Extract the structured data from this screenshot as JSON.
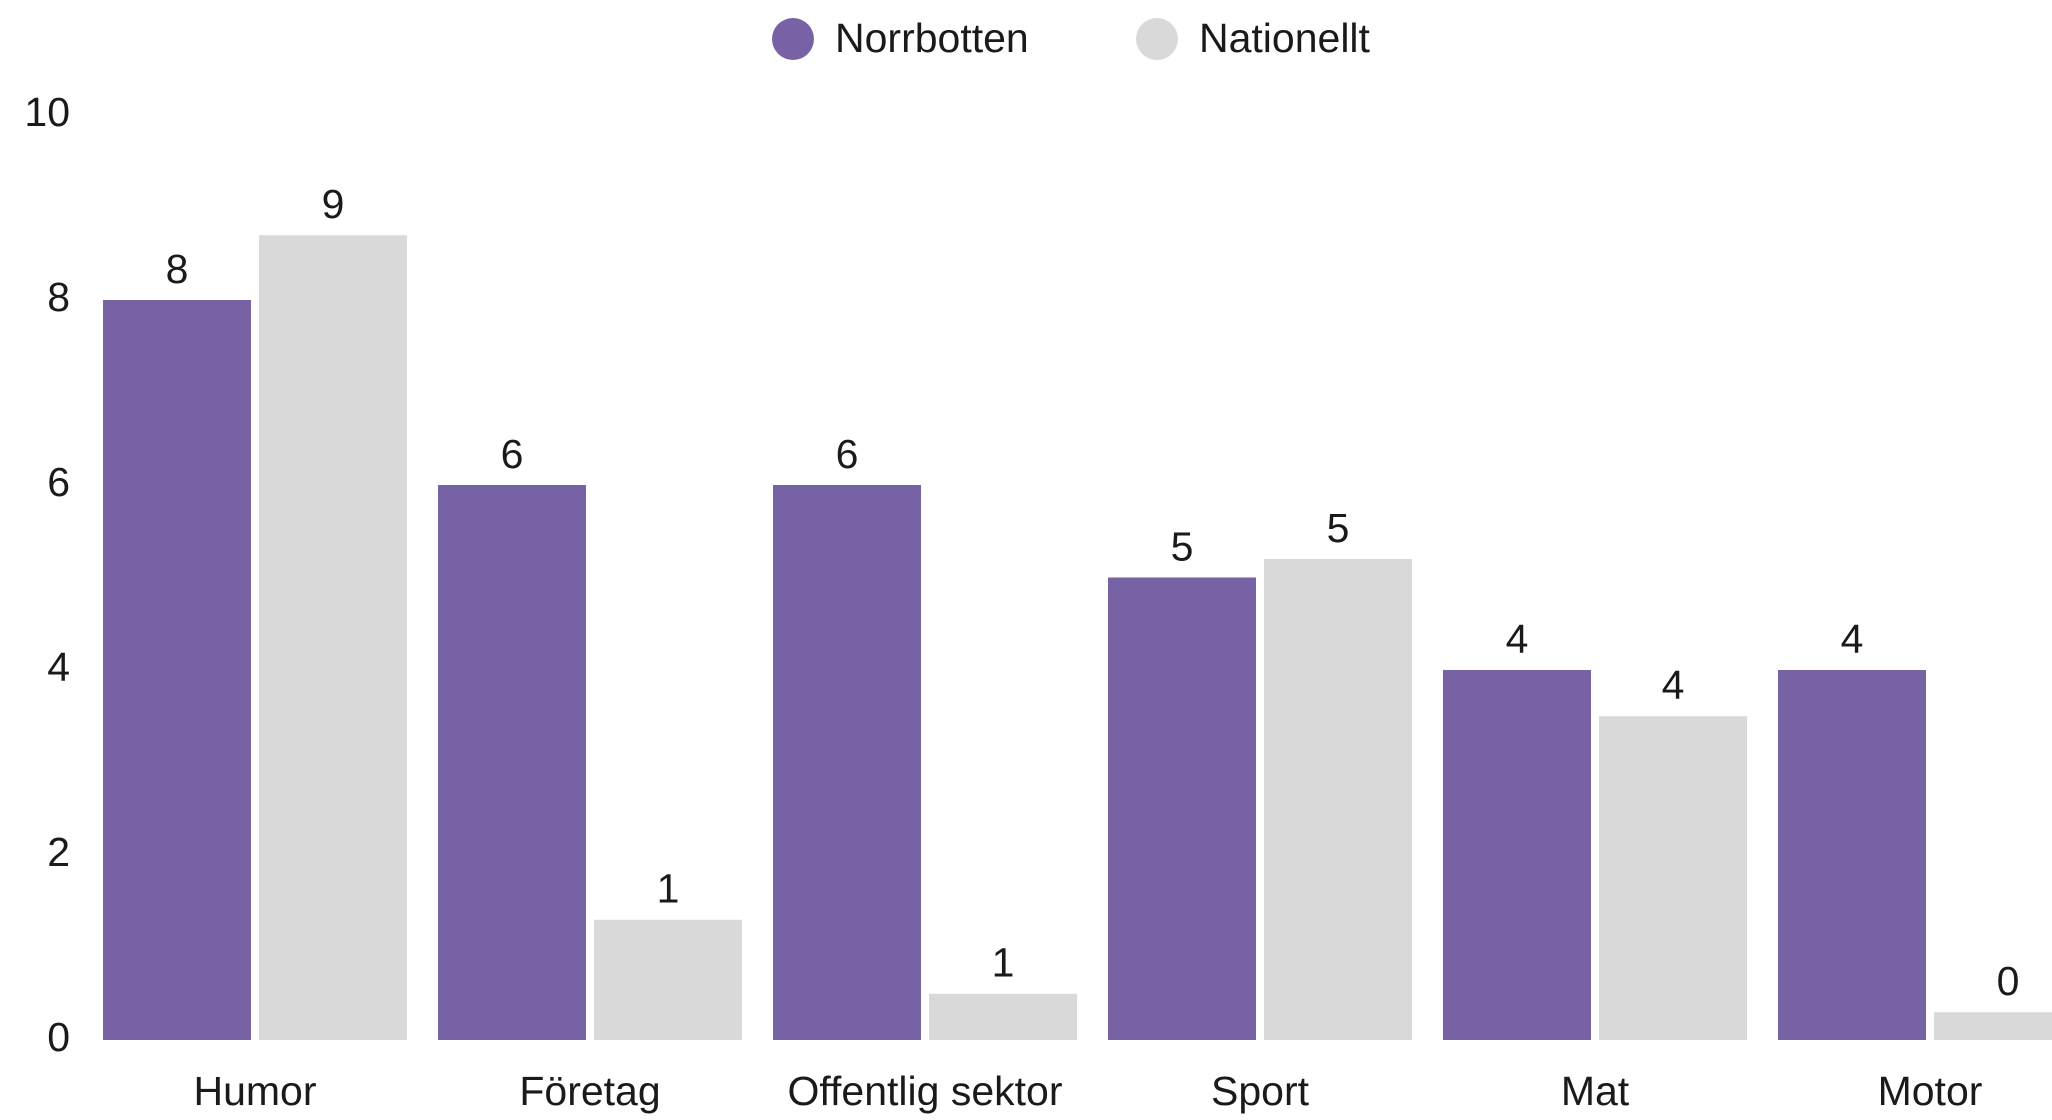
{
  "chart_data": {
    "type": "bar",
    "categories": [
      "Humor",
      "Företag",
      "Offentlig sektor",
      "Sport",
      "Mat",
      "Motor"
    ],
    "series": [
      {
        "name": "Norrbotten",
        "color": "#7862a6",
        "values": [
          8,
          6,
          6,
          5,
          4,
          4
        ]
      },
      {
        "name": "Nationellt",
        "color": "#d9d9d9",
        "values": [
          8.7,
          1.3,
          0.5,
          5.2,
          3.5,
          0.3
        ],
        "value_labels": [
          "9",
          "1",
          "1",
          "5",
          "4",
          "0"
        ]
      }
    ],
    "ylim": [
      0,
      10
    ],
    "yticks": [
      0,
      2,
      4,
      6,
      8,
      10
    ],
    "grid": false,
    "legend": "top"
  }
}
